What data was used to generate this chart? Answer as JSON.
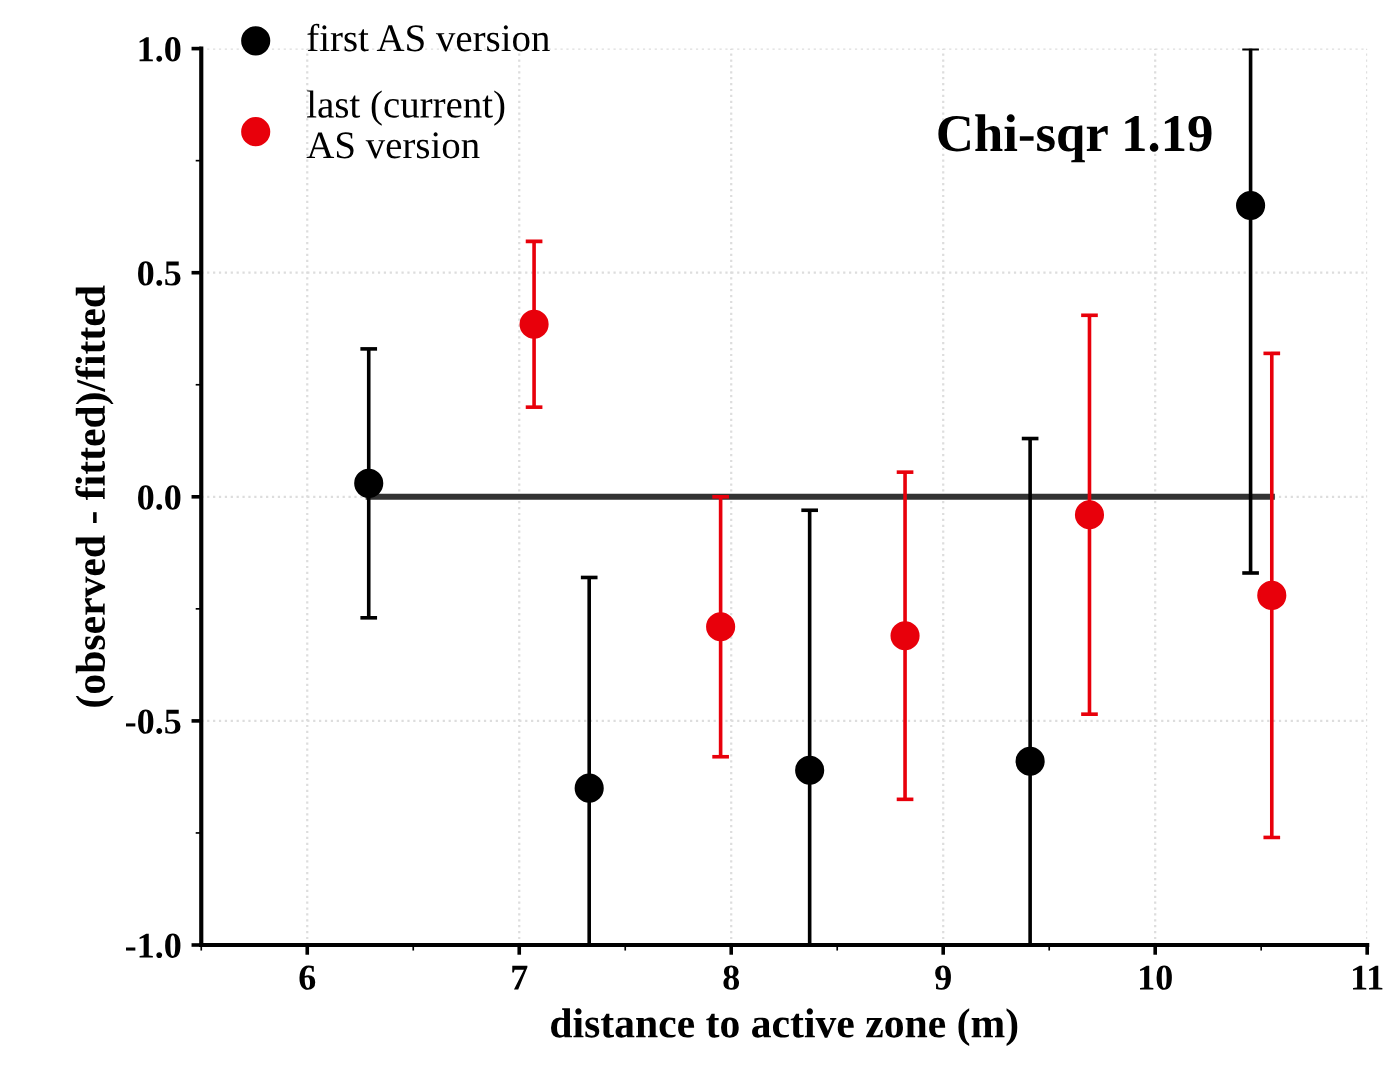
{
  "chart_data": {
    "type": "scatter",
    "xlabel": "distance to active zone (m)",
    "ylabel": "(observed - fitted)/fitted",
    "annotations": [
      "Chi-sqr 1.19"
    ],
    "series": [
      {
        "name": "first AS version",
        "color": "#000000",
        "marker": "circle",
        "x": [
          6.29,
          7.33,
          8.37,
          9.41,
          10.45
        ],
        "values": [
          0.03,
          -0.65,
          -0.61,
          -0.59,
          0.65
        ],
        "errors": [
          [
            -0.27,
            0.33
          ],
          [
            -1.0,
            -0.18
          ],
          [
            -1.0,
            -0.03
          ],
          [
            -1.0,
            0.13
          ],
          [
            -0.17,
            1.0
          ]
        ]
      },
      {
        "name": "last (current)\nAS version",
        "color": "#e8000b",
        "marker": "circle",
        "x": [
          7.07,
          7.95,
          8.82,
          9.69,
          10.55
        ],
        "values": [
          0.385,
          -0.29,
          -0.31,
          -0.04,
          -0.22
        ],
        "errors": [
          [
            0.2,
            0.57
          ],
          [
            -0.58,
            0.0
          ],
          [
            -0.675,
            0.055
          ],
          [
            -0.485,
            0.405
          ],
          [
            -0.76,
            0.32
          ]
        ]
      },
      {
        "type": "line",
        "color": "#333333",
        "x": [
          6.29,
          10.55
        ],
        "values": [
          0,
          0
        ]
      }
    ],
    "xlim": [
      5.5,
      11
    ],
    "xticks": [
      6,
      7,
      8,
      9,
      10,
      11
    ],
    "ylim": [
      -1.0,
      1.0
    ],
    "yticks": [
      {
        "value": -1.0,
        "label": "-1.0"
      },
      {
        "value": -0.5,
        "label": "-0.5"
      },
      {
        "value": 0,
        "label": "0.0"
      },
      {
        "value": 0.5,
        "label": "0.5"
      },
      {
        "value": 1.0,
        "label": "1.0"
      }
    ],
    "grid": true,
    "legend": "top left"
  }
}
